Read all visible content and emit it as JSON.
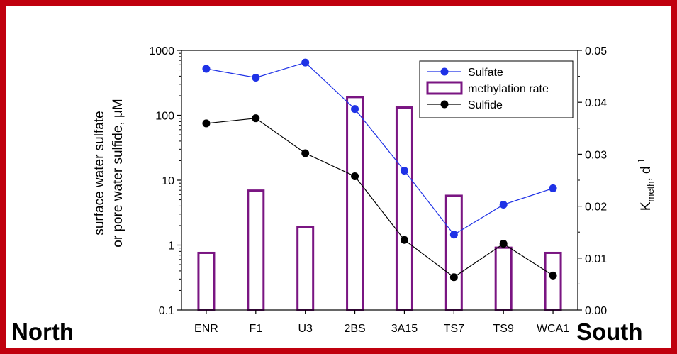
{
  "region_labels": {
    "left": "North",
    "right": "South"
  },
  "colors": {
    "frame": "#c0000e",
    "sulfate": "#1f32e6",
    "methylation": "#7a1582",
    "sulfide": "#000000"
  },
  "chart_data": {
    "type": "bar+line",
    "categories": [
      "ENR",
      "F1",
      "U3",
      "2BS",
      "3A15",
      "TS7",
      "TS9",
      "WCA1"
    ],
    "left_axis": {
      "label_line1": "surface water sulfate",
      "label_line2": "or pore water sulfide, μM",
      "scale": "log",
      "range": [
        0.1,
        1000
      ],
      "ticks": [
        "0.1",
        "1",
        "10",
        "100",
        "1000"
      ]
    },
    "right_axis": {
      "label_main": "K",
      "label_sub": "meth",
      "label_rest": ", d",
      "label_sup": "-1",
      "scale": "linear",
      "range": [
        0,
        0.05
      ],
      "ticks": [
        "0.00",
        "0.01",
        "0.02",
        "0.03",
        "0.04",
        "0.05"
      ]
    },
    "series": [
      {
        "name": "Sulfate",
        "type": "line",
        "axis": "left",
        "values": [
          520,
          380,
          650,
          125,
          14,
          1.45,
          4.2,
          7.5
        ]
      },
      {
        "name": "methylation rate",
        "type": "bar",
        "axis": "right",
        "values": [
          0.011,
          0.023,
          0.016,
          0.041,
          0.039,
          0.022,
          0.012,
          0.011
        ]
      },
      {
        "name": "Sulfide",
        "type": "line",
        "axis": "left",
        "values": [
          75,
          90,
          26,
          11.5,
          1.2,
          0.32,
          1.05,
          0.34
        ]
      }
    ],
    "legend": {
      "position": "top-right"
    },
    "grid": false
  }
}
